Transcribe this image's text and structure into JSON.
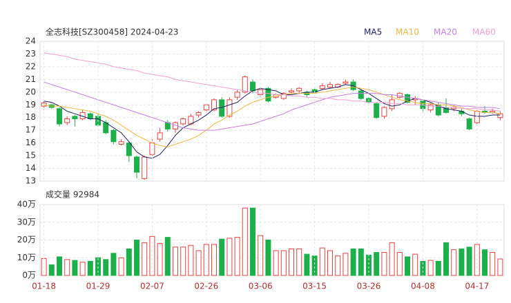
{
  "chart_data": [
    {
      "type": "candlestick",
      "title": "全志科技[SZ300458] 2024-04-23",
      "up_color": "#e8413e",
      "down_color": "#1db04a",
      "open": [
        18.9,
        19.0,
        18.7,
        17.6,
        18.1,
        17.9,
        18.3,
        18.1,
        17.6,
        17.0,
        15.9,
        16.0,
        14.9,
        13.2,
        15.1,
        16.3,
        17.6,
        17.1,
        17.5,
        17.5,
        18.2,
        18.6,
        18.6,
        19.4,
        18.1,
        19.6,
        20.0,
        20.8,
        19.8,
        20.3,
        19.6,
        19.5,
        20.0,
        20.1,
        20.0,
        20.2,
        20.3,
        20.4,
        20.4,
        20.7,
        20.8,
        20.1,
        19.5,
        19.1,
        18.1,
        18.7,
        19.6,
        19.8,
        19.4,
        19.3,
        18.6,
        19.0,
        18.8,
        18.7,
        18.5,
        17.9,
        17.6,
        18.5,
        18.4,
        18.0
      ],
      "high": [
        19.3,
        19.1,
        18.8,
        18.1,
        18.2,
        18.6,
        18.4,
        18.5,
        17.8,
        17.1,
        16.3,
        16.1,
        15.0,
        15.0,
        16.3,
        17.2,
        17.8,
        17.7,
        18.0,
        18.3,
        18.5,
        19.1,
        19.5,
        19.6,
        19.6,
        20.2,
        21.3,
        21.0,
        20.4,
        20.4,
        19.9,
        20.0,
        20.3,
        20.4,
        20.1,
        20.3,
        20.7,
        20.8,
        20.7,
        21.0,
        21.0,
        20.2,
        19.6,
        19.2,
        18.9,
        19.8,
        20.0,
        19.9,
        19.7,
        19.4,
        19.1,
        19.2,
        19.5,
        19.0,
        18.7,
        18.0,
        18.6,
        18.9,
        18.7,
        18.5
      ],
      "low": [
        18.6,
        18.7,
        17.3,
        17.4,
        17.3,
        17.8,
        17.8,
        17.3,
        16.7,
        15.9,
        15.8,
        14.5,
        13.2,
        13.1,
        15.0,
        16.1,
        16.9,
        16.8,
        17.4,
        17.4,
        18.0,
        18.5,
        18.5,
        18.0,
        18.0,
        19.4,
        19.9,
        19.9,
        19.6,
        19.2,
        19.5,
        19.4,
        19.9,
        19.9,
        19.6,
        19.9,
        20.2,
        20.3,
        20.3,
        20.6,
        20.1,
        19.4,
        19.0,
        17.9,
        17.9,
        18.5,
        19.5,
        19.1,
        19.0,
        18.5,
        18.4,
        18.1,
        18.3,
        18.5,
        18.1,
        17.0,
        17.5,
        18.3,
        18.3,
        17.8
      ],
      "close": [
        19.15,
        18.8,
        17.5,
        17.9,
        17.9,
        18.4,
        17.9,
        17.4,
        16.8,
        16.1,
        16.1,
        15.0,
        13.7,
        14.9,
        16.0,
        16.8,
        17.1,
        17.6,
        17.9,
        18.1,
        18.4,
        19.0,
        19.4,
        18.1,
        19.4,
        20.0,
        21.2,
        20.1,
        20.2,
        19.3,
        19.8,
        19.9,
        20.1,
        20.3,
        19.8,
        20.0,
        20.5,
        20.6,
        20.6,
        20.8,
        20.2,
        19.5,
        19.2,
        18.0,
        18.8,
        19.4,
        19.9,
        19.2,
        19.5,
        18.7,
        19.0,
        18.2,
        18.4,
        18.8,
        18.3,
        17.1,
        18.5,
        18.4,
        18.5,
        18.3
      ],
      "series": [
        {
          "name": "MA5",
          "color": "#1c1f5e",
          "values": [
            19.3,
            19.2,
            18.9,
            18.5,
            18.3,
            18.1,
            17.9,
            17.9,
            17.6,
            17.2,
            16.8,
            16.1,
            15.3,
            14.9,
            14.8,
            15.1,
            15.8,
            16.6,
            17.2,
            17.5,
            17.8,
            18.2,
            18.7,
            18.8,
            19.0,
            19.2,
            19.7,
            20.1,
            20.3,
            20.2,
            20.1,
            19.8,
            19.8,
            19.9,
            20.0,
            20.0,
            20.2,
            20.3,
            20.4,
            20.6,
            20.5,
            20.2,
            19.9,
            19.5,
            19.1,
            18.9,
            19.0,
            19.3,
            19.5,
            19.4,
            19.2,
            18.9,
            18.7,
            18.6,
            18.5,
            18.2,
            18.1,
            18.1,
            18.2,
            18.2
          ]
        },
        {
          "name": "MA10",
          "color": "#f2b640",
          "values": [
            19.0,
            18.9,
            18.9,
            18.8,
            18.7,
            18.6,
            18.5,
            18.3,
            18.1,
            17.8,
            17.4,
            17.0,
            16.6,
            16.3,
            16.0,
            15.8,
            15.7,
            15.9,
            16.1,
            16.3,
            16.6,
            17.0,
            17.5,
            17.8,
            18.2,
            18.5,
            18.9,
            19.2,
            19.4,
            19.6,
            19.7,
            19.8,
            19.9,
            19.9,
            19.9,
            19.9,
            20.0,
            20.1,
            20.2,
            20.3,
            20.4,
            20.3,
            20.2,
            20.0,
            19.8,
            19.6,
            19.4,
            19.3,
            19.2,
            19.1,
            19.1,
            19.0,
            19.0,
            18.9,
            18.8,
            18.6,
            18.5,
            18.4,
            18.4,
            18.3
          ]
        },
        {
          "name": "MA20",
          "color": "#c27ee0",
          "values": [
            20.8,
            20.6,
            20.4,
            20.2,
            20.0,
            19.8,
            19.6,
            19.4,
            19.2,
            19.0,
            18.8,
            18.6,
            18.4,
            18.2,
            18.0,
            17.8,
            17.6,
            17.4,
            17.2,
            17.1,
            17.0,
            17.0,
            17.0,
            17.1,
            17.2,
            17.3,
            17.4,
            17.5,
            17.7,
            17.9,
            18.1,
            18.3,
            18.6,
            18.8,
            19.0,
            19.2,
            19.4,
            19.6,
            19.7,
            19.8,
            19.9,
            19.9,
            19.9,
            19.9,
            19.8,
            19.8,
            19.7,
            19.6,
            19.5,
            19.4,
            19.3,
            19.2,
            19.1,
            19.0,
            18.9,
            18.9,
            18.8,
            18.8,
            18.8,
            18.7
          ]
        },
        {
          "name": "MA60",
          "color": "#f29ed2",
          "values": [
            23.1,
            23.0,
            22.9,
            22.8,
            22.6,
            22.5,
            22.4,
            22.3,
            22.2,
            22.0,
            21.9,
            21.8,
            21.7,
            21.5,
            21.4,
            21.3,
            21.2,
            21.0,
            20.9,
            20.8,
            20.7,
            20.6,
            20.5,
            20.4,
            20.3,
            20.2,
            20.1,
            20.0,
            19.9,
            19.9,
            19.8,
            19.8,
            19.7,
            19.7,
            19.6,
            19.6,
            19.5,
            19.5,
            19.4,
            19.4,
            19.3,
            19.3,
            19.2,
            19.2,
            19.2,
            19.1,
            19.1,
            19.0,
            19.0,
            19.0,
            18.9,
            18.9,
            18.8,
            18.8,
            18.7,
            18.7,
            18.7,
            18.6,
            18.6,
            18.5
          ]
        }
      ],
      "ylim": [
        13,
        24
      ],
      "yticks": [
        13,
        14,
        15,
        16,
        17,
        18,
        19,
        20,
        21,
        22,
        23,
        24
      ],
      "grid": true
    },
    {
      "type": "volume",
      "title": "成交量 92984",
      "categories": [
        "01-18",
        null,
        null,
        null,
        null,
        null,
        null,
        "01-29",
        null,
        null,
        null,
        null,
        null,
        null,
        "02-07",
        null,
        null,
        null,
        null,
        null,
        null,
        "02-26",
        null,
        null,
        null,
        null,
        null,
        null,
        "03-06",
        null,
        null,
        null,
        null,
        null,
        null,
        "03-15",
        null,
        null,
        null,
        null,
        null,
        null,
        "03-26",
        null,
        null,
        null,
        null,
        null,
        null,
        "04-08",
        null,
        null,
        null,
        null,
        null,
        null,
        "04-17",
        null,
        null,
        null
      ],
      "values": [
        9.5,
        6,
        10.5,
        9,
        8.5,
        7.5,
        8,
        10,
        9,
        12.5,
        10,
        15,
        20,
        18.5,
        22,
        18,
        21.5,
        16,
        16,
        17,
        14,
        17.5,
        17.5,
        20.5,
        21,
        21.5,
        38,
        38,
        22.5,
        20,
        14,
        14,
        15,
        15,
        12,
        11,
        15.5,
        14,
        11,
        12.5,
        15,
        15,
        11.5,
        13,
        13,
        18.5,
        13,
        10.5,
        12,
        8,
        8.5,
        8,
        18.5,
        14.5,
        15,
        16,
        17.5,
        14.5,
        13,
        9.2984
      ],
      "ylim": [
        0,
        40
      ],
      "yticks": [
        {
          "value": 0,
          "label": "0万"
        },
        {
          "value": 10,
          "label": "10万"
        },
        {
          "value": 20,
          "label": "20万"
        },
        {
          "value": 30,
          "label": "30万"
        },
        {
          "value": 40,
          "label": "40万"
        }
      ],
      "grid": true
    }
  ]
}
